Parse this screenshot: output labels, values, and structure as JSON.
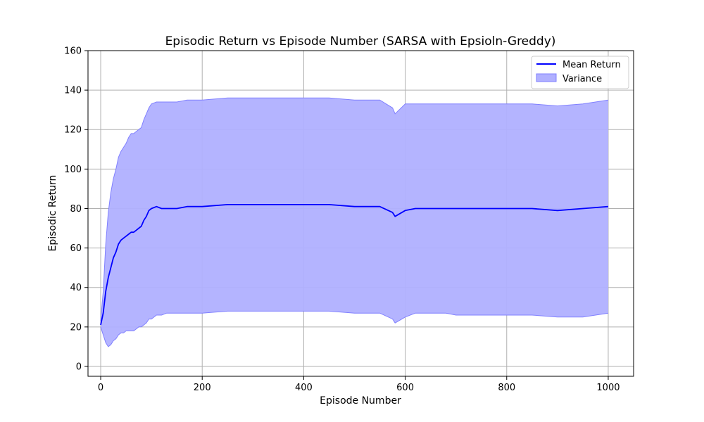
{
  "chart_data": {
    "type": "line",
    "title": "Episodic Return vs Episode Number (SARSA with Epsioln-Greddy)",
    "xlabel": "Episode Number",
    "ylabel": "Episodic Return",
    "xlim": [
      -25,
      1050
    ],
    "ylim": [
      -5,
      160
    ],
    "xticks": [
      0,
      200,
      400,
      600,
      800,
      1000
    ],
    "yticks": [
      0,
      20,
      40,
      60,
      80,
      100,
      120,
      140,
      160
    ],
    "grid": true,
    "legend": {
      "position": "top-right",
      "entries": [
        "Mean Return",
        "Variance"
      ]
    },
    "colors": {
      "mean": "#0000ff",
      "band_fill": "#b0b0ff",
      "band_edge": "#8080ff"
    },
    "series": [
      {
        "name": "Mean Return",
        "x": [
          0,
          5,
          10,
          15,
          20,
          25,
          30,
          35,
          40,
          45,
          50,
          55,
          60,
          65,
          70,
          75,
          80,
          85,
          90,
          95,
          100,
          110,
          120,
          130,
          140,
          150,
          170,
          200,
          250,
          300,
          350,
          400,
          450,
          500,
          550,
          575,
          580,
          600,
          620,
          650,
          680,
          700,
          750,
          800,
          850,
          900,
          950,
          1000
        ],
        "y": [
          21,
          27,
          38,
          45,
          50,
          55,
          58,
          62,
          64,
          65,
          66,
          67,
          68,
          68,
          69,
          70,
          71,
          74,
          76,
          79,
          80,
          81,
          80,
          80,
          80,
          80,
          81,
          81,
          82,
          82,
          82,
          82,
          82,
          81,
          81,
          78,
          76,
          79,
          80,
          80,
          80,
          80,
          80,
          80,
          80,
          79,
          80,
          81
        ]
      },
      {
        "name": "Variance",
        "x": [
          0,
          5,
          10,
          15,
          20,
          25,
          30,
          35,
          40,
          45,
          50,
          55,
          60,
          65,
          70,
          75,
          80,
          85,
          90,
          95,
          100,
          110,
          120,
          130,
          140,
          150,
          170,
          200,
          250,
          300,
          350,
          400,
          450,
          500,
          550,
          575,
          580,
          600,
          620,
          650,
          680,
          700,
          750,
          800,
          850,
          900,
          950,
          1000
        ],
        "lower": [
          20,
          16,
          12,
          10,
          11,
          13,
          14,
          16,
          17,
          17,
          18,
          18,
          18,
          18,
          19,
          20,
          20,
          21,
          22,
          24,
          24,
          26,
          26,
          27,
          27,
          27,
          27,
          27,
          28,
          28,
          28,
          28,
          28,
          27,
          27,
          24,
          22,
          25,
          27,
          27,
          27,
          26,
          26,
          26,
          26,
          25,
          25,
          27
        ],
        "upper": [
          23,
          38,
          62,
          78,
          88,
          95,
          100,
          106,
          109,
          111,
          113,
          116,
          118,
          118,
          119,
          120,
          121,
          125,
          128,
          131,
          133,
          134,
          134,
          134,
          134,
          134,
          135,
          135,
          136,
          136,
          136,
          136,
          136,
          135,
          135,
          131,
          128,
          133,
          133,
          133,
          133,
          133,
          133,
          133,
          133,
          132,
          133,
          135
        ]
      }
    ]
  }
}
